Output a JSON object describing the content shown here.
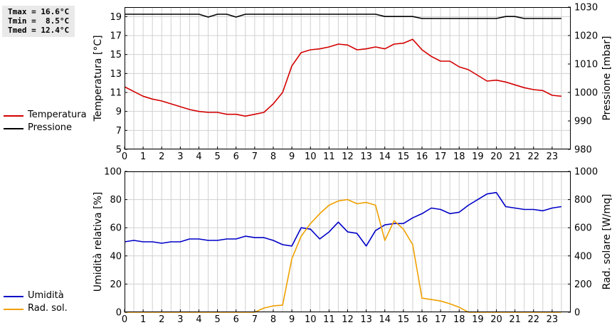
{
  "stats": {
    "lines": [
      "Tmax = 16.6°C",
      "Tmin =  8.5°C",
      "Tmed = 12.4°C"
    ]
  },
  "colors": {
    "temperatura": "#d40000",
    "pressione": "#000000",
    "umidita": "#0000c8",
    "radiazione": "#f0a000",
    "grid": "#d0d0d0"
  },
  "chart_data": [
    {
      "type": "line",
      "x": [
        0,
        0.5,
        1,
        1.5,
        2,
        2.5,
        3,
        3.5,
        4,
        4.5,
        5,
        5.5,
        6,
        6.5,
        7,
        7.5,
        8,
        8.5,
        9,
        9.5,
        10,
        10.5,
        11,
        11.5,
        12,
        12.5,
        13,
        13.5,
        14,
        14.5,
        15,
        15.5,
        16,
        16.5,
        17,
        17.5,
        18,
        18.5,
        19,
        19.5,
        20,
        20.5,
        21,
        21.5,
        22,
        22.5,
        23,
        23.5
      ],
      "xlim": [
        0,
        24
      ],
      "xticks": [
        "0",
        "1",
        "2",
        "3",
        "4",
        "5",
        "6",
        "7",
        "8",
        "9",
        "10",
        "11",
        "12",
        "13",
        "14",
        "15",
        "16",
        "17",
        "18",
        "19",
        "20",
        "21",
        "22",
        "23"
      ],
      "ylabel": "Temperatura [°C]",
      "ylim": [
        5,
        20
      ],
      "yticks": [
        "5",
        "7",
        "9",
        "11",
        "13",
        "15",
        "17",
        "19"
      ],
      "y2label": "Pressione [mbar]",
      "y2lim": [
        980,
        1030
      ],
      "y2ticks": [
        "980",
        "990",
        "1000",
        "1010",
        "1020",
        "1030"
      ],
      "grid": true,
      "series": [
        {
          "name": "Temperatura",
          "axis": "left",
          "color": "#d40000",
          "values": [
            11.6,
            11.1,
            10.6,
            10.3,
            10.1,
            9.8,
            9.5,
            9.2,
            9.0,
            8.9,
            8.9,
            8.7,
            8.7,
            8.5,
            8.7,
            8.9,
            9.8,
            11.0,
            13.8,
            15.2,
            15.5,
            15.6,
            15.8,
            16.1,
            16.0,
            15.5,
            15.6,
            15.8,
            15.6,
            16.1,
            16.2,
            16.6,
            15.5,
            14.8,
            14.3,
            14.3,
            13.7,
            13.4,
            12.8,
            12.2,
            12.3,
            12.1,
            11.8,
            11.5,
            11.3,
            11.2,
            10.7,
            10.6
          ]
        },
        {
          "name": "Pressione",
          "axis": "right",
          "color": "#000000",
          "values": [
            1027.5,
            1027.5,
            1027.5,
            1027.5,
            1027.5,
            1027.5,
            1027.5,
            1027.5,
            1027.5,
            1026.5,
            1027.5,
            1027.5,
            1026.5,
            1027.5,
            1027.5,
            1027.5,
            1027.5,
            1027.5,
            1027.5,
            1027.5,
            1027.5,
            1027.5,
            1027.5,
            1027.5,
            1027.5,
            1027.5,
            1027.5,
            1027.5,
            1026.7,
            1026.7,
            1026.7,
            1026.7,
            1026.0,
            1026.0,
            1026.0,
            1026.0,
            1026.0,
            1026.0,
            1026.0,
            1026.0,
            1026.0,
            1026.7,
            1026.7,
            1026.0,
            1026.0,
            1026.0,
            1026.0,
            1026.0
          ]
        }
      ]
    },
    {
      "type": "line",
      "x": [
        0,
        0.5,
        1,
        1.5,
        2,
        2.5,
        3,
        3.5,
        4,
        4.5,
        5,
        5.5,
        6,
        6.5,
        7,
        7.5,
        8,
        8.5,
        9,
        9.5,
        10,
        10.5,
        11,
        11.5,
        12,
        12.5,
        13,
        13.5,
        14,
        14.5,
        15,
        15.5,
        16,
        16.5,
        17,
        17.5,
        18,
        18.5,
        19,
        19.5,
        20,
        20.5,
        21,
        21.5,
        22,
        22.5,
        23,
        23.5
      ],
      "xlim": [
        0,
        24
      ],
      "xticks": [
        "0",
        "1",
        "2",
        "3",
        "4",
        "5",
        "6",
        "7",
        "8",
        "9",
        "10",
        "11",
        "12",
        "13",
        "14",
        "15",
        "16",
        "17",
        "18",
        "19",
        "20",
        "21",
        "22",
        "23"
      ],
      "ylabel": "Umidità relativa [%]",
      "ylim": [
        0,
        100
      ],
      "yticks": [
        "0",
        "20",
        "40",
        "60",
        "80",
        "100"
      ],
      "y2label": "Rad. solare [W/mq]",
      "y2lim": [
        0,
        1000
      ],
      "y2ticks": [
        "0",
        "200",
        "400",
        "600",
        "800",
        "1000"
      ],
      "grid": true,
      "series": [
        {
          "name": "Umidità",
          "axis": "left",
          "color": "#0000c8",
          "values": [
            50,
            51,
            50,
            50,
            49,
            50,
            50,
            52,
            52,
            51,
            51,
            52,
            52,
            54,
            53,
            53,
            51,
            48,
            47,
            60,
            59,
            52,
            57,
            64,
            57,
            56,
            47,
            58,
            62,
            63,
            63,
            67,
            70,
            74,
            73,
            70,
            71,
            76,
            80,
            84,
            85,
            75,
            74,
            73,
            73,
            72,
            74,
            75
          ]
        },
        {
          "name": "Rad. sol.",
          "axis": "right",
          "color": "#f0a000",
          "values": [
            0,
            0,
            0,
            0,
            0,
            0,
            0,
            0,
            0,
            0,
            0,
            0,
            0,
            0,
            0,
            30,
            45,
            50,
            380,
            540,
            630,
            700,
            760,
            790,
            800,
            770,
            780,
            760,
            510,
            650,
            590,
            480,
            100,
            90,
            80,
            60,
            35,
            0,
            0,
            0,
            0,
            0,
            0,
            0,
            0,
            0,
            0,
            0
          ]
        }
      ]
    }
  ]
}
